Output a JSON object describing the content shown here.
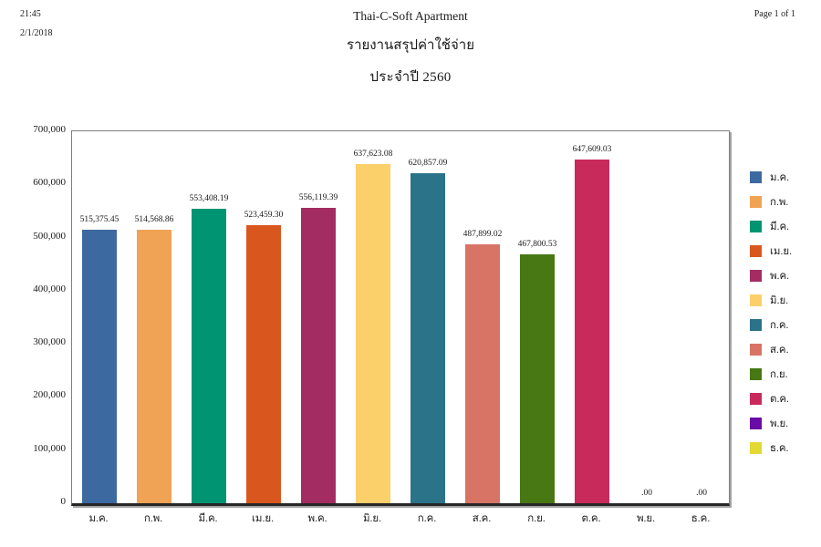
{
  "header": {
    "time": "21:45",
    "date": "2/1/2018",
    "page": "Page 1 of 1",
    "title": "Thai-C-Soft Apartment",
    "subtitle": "รายงานสรุปค่าใช้จ่าย",
    "year_line": "ประจำปี  2560"
  },
  "chart_data": {
    "type": "bar",
    "title": "รายงานสรุปค่าใช้จ่าย ประจำปี 2560",
    "categories": [
      "ม.ค.",
      "ก.พ.",
      "มี.ค.",
      "เม.ย.",
      "พ.ค.",
      "มิ.ย.",
      "ก.ค.",
      "ส.ค.",
      "ก.ย.",
      "ต.ค.",
      "พ.ย.",
      "ธ.ค."
    ],
    "values": [
      515375.45,
      514568.86,
      553408.19,
      523459.3,
      556119.39,
      637623.08,
      620857.09,
      487899.02,
      467800.53,
      647609.03,
      0.0,
      0.0
    ],
    "value_labels": [
      "515,375.45",
      "514,568.86",
      "553,408.19",
      "523,459.30",
      "556,119.39",
      "637,623.08",
      "620,857.09",
      "487,899.02",
      "467,800.53",
      "647,609.03",
      ".00",
      ".00"
    ],
    "colors": [
      "#3d69a1",
      "#f0a355",
      "#009472",
      "#d9571f",
      "#a32d63",
      "#fbcf6a",
      "#2a7389",
      "#d87465",
      "#477814",
      "#c92a5c",
      "#6a0ba5",
      "#e3d835"
    ],
    "xlabel": "",
    "ylabel": "",
    "ylim": [
      0,
      700000
    ],
    "ytick_step": 100000,
    "ytick_labels": [
      "0",
      "100,000",
      "200,000",
      "300,000",
      "400,000",
      "500,000",
      "600,000",
      "700,000"
    ],
    "grid": false,
    "legend_position": "right"
  }
}
